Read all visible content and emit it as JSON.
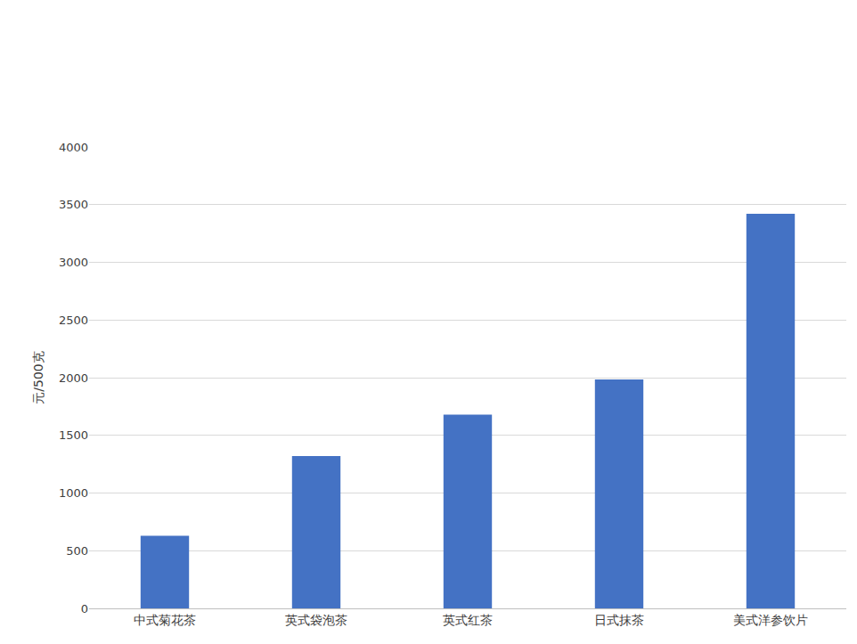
{
  "chart_data": {
    "type": "bar",
    "y_label": "元/500克",
    "categories": [
      "中式菊花茶",
      "英式袋泡茶",
      "英式红茶",
      "日式抹茶",
      "美式洋参饮片"
    ],
    "values": [
      630,
      1320,
      1680,
      1985,
      3420
    ],
    "color": "#4472c4",
    "ylim": [
      0,
      4000
    ],
    "yticks": [
      0,
      500,
      1000,
      1500,
      2000,
      2500,
      3000,
      3500,
      4000
    ],
    "grid": true
  }
}
